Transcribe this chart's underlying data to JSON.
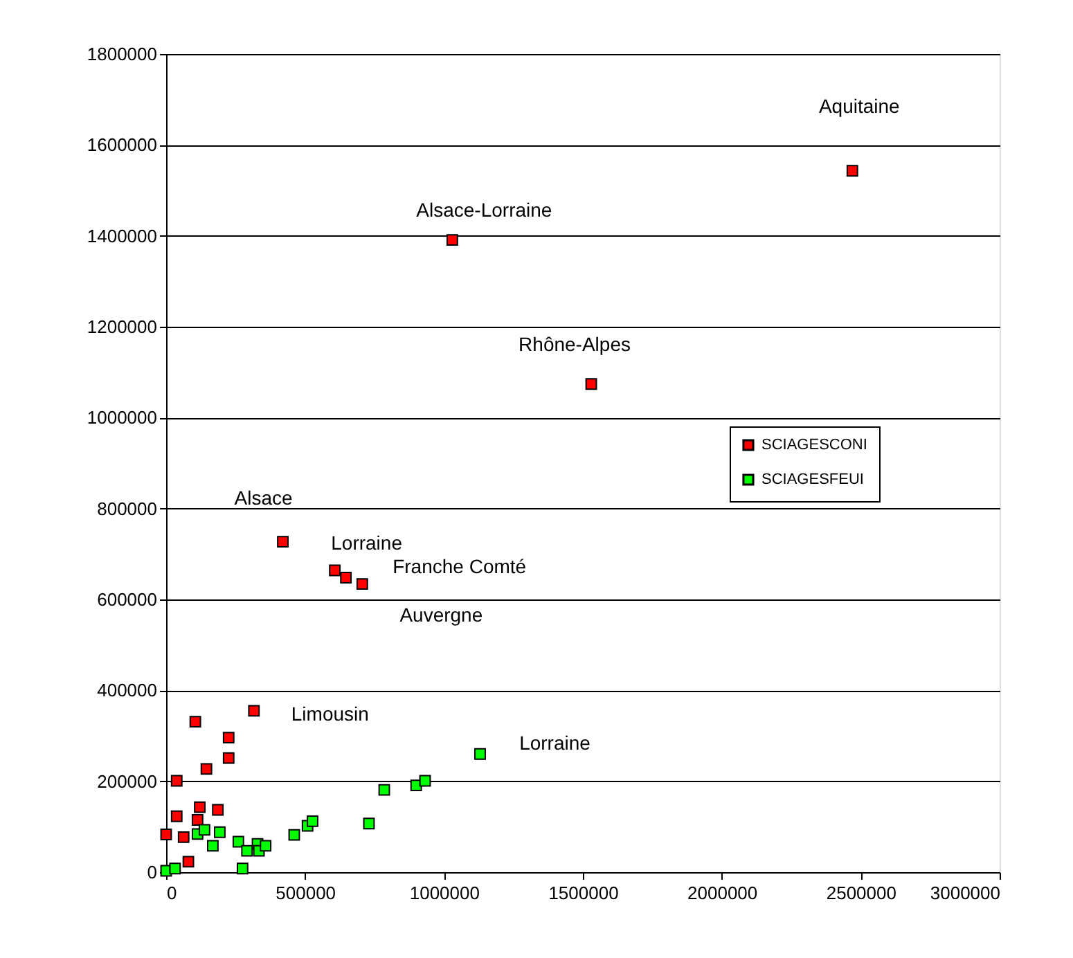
{
  "chart_data": {
    "type": "scatter",
    "marker": "square",
    "grid": "y",
    "legend": "right",
    "xlim": [
      0,
      3000000
    ],
    "xticks": [
      0,
      500000,
      1000000,
      1500000,
      2000000,
      2500000,
      3000000
    ],
    "ylim": [
      0,
      1800000
    ],
    "yticks": [
      0,
      200000,
      400000,
      600000,
      800000,
      1000000,
      1200000,
      1400000,
      1600000,
      1800000
    ],
    "series": [
      {
        "name": "SCIAGESCONI",
        "color": "#ff0000",
        "x": [
          2470000,
          1030000,
          1530000,
          420000,
          607000,
          647000,
          706000,
          316000,
          105000,
          225000,
          225000,
          145000,
          38000,
          121000,
          186000,
          38000,
          113000,
          0,
          63000,
          80000
        ],
        "values": [
          1543000,
          1391000,
          1074000,
          727000,
          664000,
          648000,
          634000,
          355000,
          331000,
          296000,
          251000,
          227000,
          201000,
          143000,
          137000,
          123000,
          115000,
          83000,
          77000,
          23000
        ]
      },
      {
        "name": "SCIAGESFEUI",
        "color": "#00ff00",
        "x": [
          0,
          32000,
          113000,
          138000,
          168000,
          193000,
          260000,
          291000,
          275000,
          329000,
          334000,
          358000,
          461000,
          509000,
          527000,
          730000,
          785000,
          900000,
          932000,
          1130000
        ],
        "values": [
          3000,
          8000,
          84000,
          93000,
          58000,
          88000,
          67000,
          47000,
          8000,
          62000,
          47000,
          58000,
          82000,
          102000,
          112000,
          107000,
          181000,
          191000,
          201000,
          260000
        ]
      }
    ],
    "annotations": [
      {
        "text": "Aquitaine",
        "x": 2470000,
        "y": 1543000
      },
      {
        "text": "Alsace-Lorraine",
        "x": 1030000,
        "y": 1391000
      },
      {
        "text": "Rhône-Alpes",
        "x": 1530000,
        "y": 1074000
      },
      {
        "text": "Alsace",
        "x": 420000,
        "y": 727000
      },
      {
        "text": "Lorraine",
        "x": 607000,
        "y": 664000
      },
      {
        "text": "Franche Comté",
        "x": 647000,
        "y": 648000
      },
      {
        "text": "Auvergne",
        "x": 706000,
        "y": 634000
      },
      {
        "text": "Limousin",
        "x": 316000,
        "y": 355000
      },
      {
        "text": "Lorraine",
        "x": 1130000,
        "y": 260000
      }
    ]
  }
}
